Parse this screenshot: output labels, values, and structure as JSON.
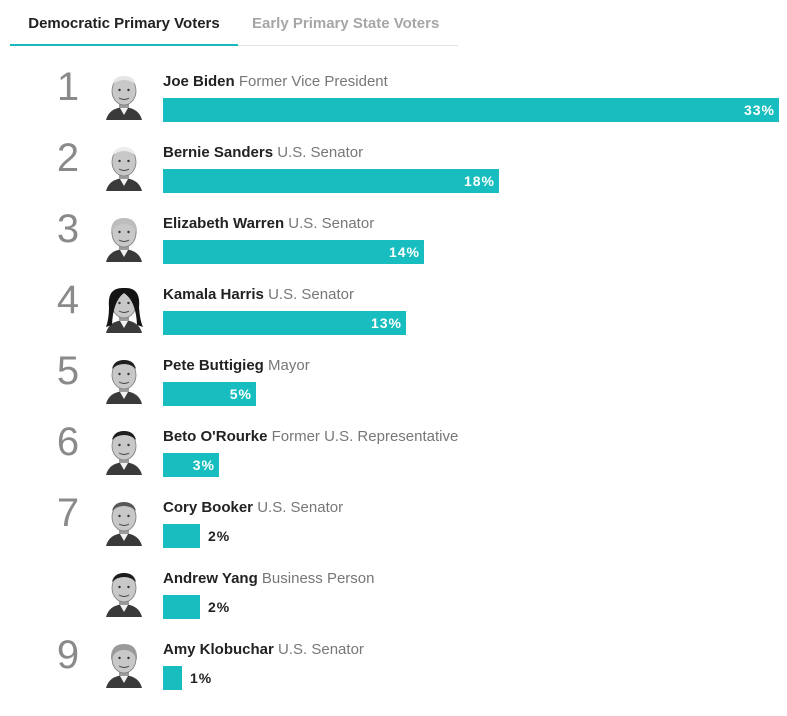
{
  "tabs": [
    {
      "label": "Democratic Primary Voters",
      "active": true
    },
    {
      "label": "Early Primary State Voters",
      "active": false
    }
  ],
  "colors": {
    "bar": "#18bdbf",
    "rank": "#8a8a8a",
    "tab_underline": "#18b8bd"
  },
  "chart_data": {
    "type": "bar",
    "orientation": "horizontal",
    "value_suffix": "%",
    "xlim": [
      0,
      33
    ],
    "categories": [
      "Joe Biden",
      "Bernie Sanders",
      "Elizabeth Warren",
      "Kamala Harris",
      "Pete Buttigieg",
      "Beto O'Rourke",
      "Cory Booker",
      "Andrew Yang",
      "Amy Klobuchar"
    ],
    "values": [
      33,
      18,
      14,
      13,
      5,
      3,
      2,
      2,
      1
    ],
    "ranks": [
      "1",
      "2",
      "3",
      "4",
      "5",
      "6",
      "7",
      "",
      "9"
    ],
    "titles": [
      "Former Vice President",
      "U.S. Senator",
      "U.S. Senator",
      "U.S. Senator",
      "Mayor",
      "Former U.S. Representative",
      "U.S. Senator",
      "Business Person",
      "U.S. Senator"
    ],
    "labels": [
      "33%",
      "18%",
      "14%",
      "13%",
      "5%",
      "3%",
      "2%",
      "2%",
      "1%"
    ]
  }
}
